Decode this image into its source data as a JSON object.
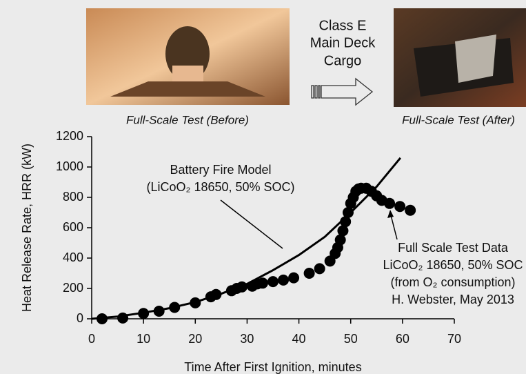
{
  "header": {
    "cargo_lines": [
      "Class E",
      "Main Deck",
      "Cargo"
    ],
    "caption_before": "Full-Scale Test (Before)",
    "caption_after": "Full-Scale Test (After)"
  },
  "chart_data": {
    "type": "line",
    "xlabel": "Time After First Ignition, minutes",
    "ylabel": "Heat Release Rate, HRR (kW)",
    "xlim": [
      0,
      70
    ],
    "xticks": [
      0,
      10,
      20,
      30,
      40,
      50,
      60,
      70
    ],
    "ylim": [
      0,
      1200
    ],
    "yticks": [
      0,
      200,
      400,
      600,
      800,
      1000,
      1200
    ],
    "annotations": [
      {
        "lines": [
          "Battery Fire Model",
          "(LiCoO₂ 18650, 50% SOC)"
        ]
      },
      {
        "lines": [
          "Full Scale Test Data",
          "LiCoO₂ 18650, 50% SOC",
          "(from O₂ consumption)",
          "H. Webster, May 2013"
        ]
      }
    ],
    "series": [
      {
        "mode": "line",
        "color": "#000000",
        "x": [
          0,
          5,
          10,
          15,
          20,
          25,
          30,
          35,
          40,
          45,
          50,
          55,
          59.6
        ],
        "values": [
          0,
          15,
          40,
          70,
          110,
          165,
          230,
          320,
          420,
          540,
          700,
          870,
          1060
        ]
      },
      {
        "mode": "markers",
        "color": "#000000",
        "x": [
          2,
          6,
          10,
          13,
          16,
          20,
          23,
          24,
          27,
          28,
          29,
          31,
          32,
          33,
          35,
          37,
          39,
          42,
          44,
          46,
          47,
          47.5,
          48,
          48.5,
          49,
          49.5,
          50,
          50.5,
          51,
          51.5,
          52,
          53,
          54,
          55,
          56,
          57.5,
          59.5,
          61.5
        ],
        "values": [
          0,
          5,
          35,
          50,
          75,
          105,
          145,
          160,
          185,
          200,
          210,
          215,
          230,
          235,
          245,
          255,
          270,
          300,
          330,
          380,
          430,
          470,
          520,
          580,
          640,
          700,
          760,
          800,
          840,
          855,
          860,
          860,
          840,
          810,
          780,
          760,
          740,
          715
        ]
      }
    ]
  }
}
